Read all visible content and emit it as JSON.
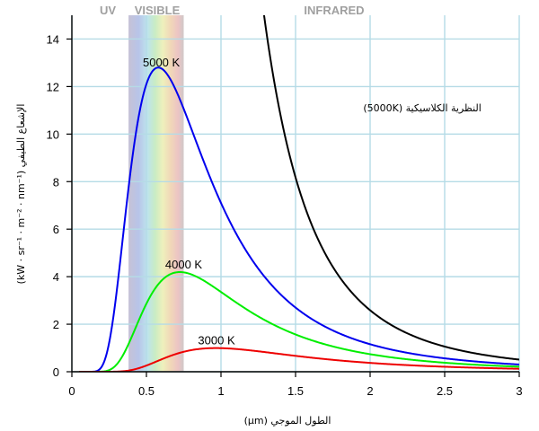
{
  "chart_data": {
    "type": "line",
    "title": "",
    "xlabel": "الطول الموجي (μm)",
    "ylabel": "الإشعاع الطيفي (kW · sr⁻¹ · m⁻² · nm⁻¹)",
    "xlim": [
      0,
      3
    ],
    "ylim": [
      0,
      15
    ],
    "xticks": [
      "0",
      "0.5",
      "1",
      "1.5",
      "2",
      "2.5",
      "3"
    ],
    "yticks": [
      "0",
      "2",
      "4",
      "6",
      "8",
      "10",
      "12",
      "14"
    ],
    "grid": true,
    "bands": [
      {
        "label": "UV",
        "range": [
          0,
          0.38
        ]
      },
      {
        "label": "VISIBLE",
        "range": [
          0.38,
          0.75
        ]
      },
      {
        "label": "INFRARED",
        "range": [
          0.75,
          3
        ]
      }
    ],
    "series": [
      {
        "name": "5000 K",
        "color": "#0000ee",
        "temperature": 5000,
        "label_at": [
          0.6,
          12.7
        ]
      },
      {
        "name": "4000 K",
        "color": "#00ee00",
        "temperature": 4000,
        "label_at": [
          0.75,
          4.2
        ]
      },
      {
        "name": "3000 K",
        "color": "#ee0000",
        "temperature": 3000,
        "label_at": [
          0.97,
          1.0
        ]
      },
      {
        "name": "النظرية الكلاسيكية (5000K)",
        "color": "#000000",
        "temperature": 5000,
        "classical": true,
        "label_at": [
          2.35,
          10.8
        ]
      }
    ]
  }
}
